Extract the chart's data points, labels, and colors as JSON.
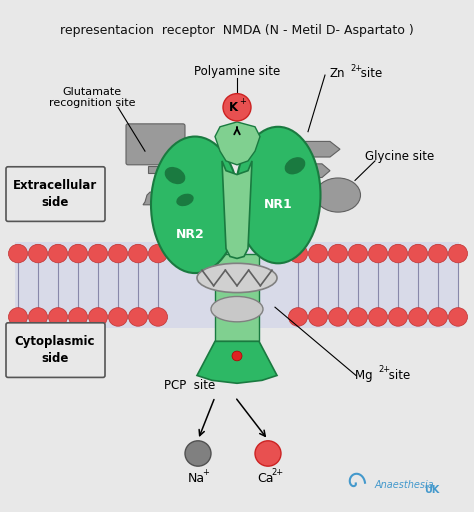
{
  "title": "representacion  receptor  NMDA (N - Metil D- Aspartato )",
  "bg_color": "#e8e8e8",
  "white_bg": "#ffffff",
  "membrane_red_color": "#e85050",
  "membrane_line_color": "#8888aa",
  "membrane_fill_color": "#d8dae8",
  "green_dark": "#1a7a40",
  "green_light": "#80d090",
  "green_medium": "#2db865",
  "gray_shape": "#9a9a9a",
  "gray_dark": "#606060",
  "gray_light": "#c0c0c0",
  "extracellular_label": "Extracellular\nside",
  "cytoplasmic_label": "Cytoplasmic\nside",
  "nr1_label": "NR1",
  "nr2_label": "NR2",
  "polyamine_label": "Polyamine site",
  "zn_label": "Zn",
  "zn_sup": "2+",
  "zn_label2": " site",
  "glycine_label": "Glycine site",
  "glutamate_label": "Glutamate\nrecognition site",
  "k_label": "K",
  "k_sup": "+",
  "pcp_label": "PCP  site",
  "mg_label": "Mg ",
  "mg_sup": "2+",
  "mg_label2": " site",
  "na_label": "Na",
  "na_sup": "+",
  "ca_label": "Ca",
  "ca_sup": "2+",
  "anaesthesia_text": "AnaesthesiaUK",
  "footer_color": "#4499cc",
  "footer_bold": "UK"
}
